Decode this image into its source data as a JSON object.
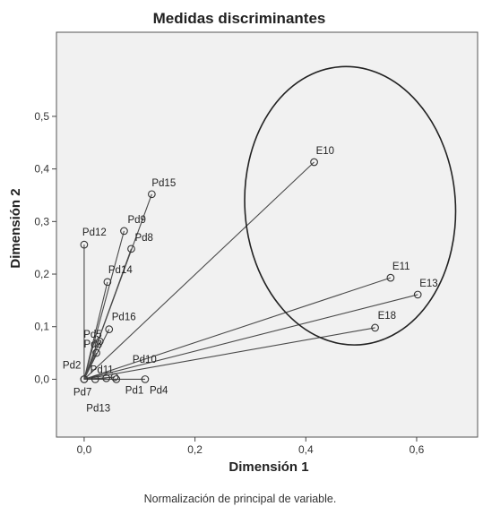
{
  "chart_data": {
    "type": "scatter",
    "title": "Medidas discriminantes",
    "xlabel": "Dimensión 1",
    "ylabel": "Dimensión 2",
    "footnote": "Normalización de principal de variable.",
    "xlim": [
      -0.05,
      0.71
    ],
    "ylim": [
      -0.11,
      0.66
    ],
    "xticks": [
      {
        "v": 0.0,
        "label": "0,0"
      },
      {
        "v": 0.2,
        "label": "0,2"
      },
      {
        "v": 0.4,
        "label": "0,4"
      },
      {
        "v": 0.6,
        "label": "0,6"
      }
    ],
    "yticks": [
      {
        "v": 0.0,
        "label": "0,0"
      },
      {
        "v": 0.1,
        "label": "0,1"
      },
      {
        "v": 0.2,
        "label": "0,2"
      },
      {
        "v": 0.3,
        "label": "0,3"
      },
      {
        "v": 0.4,
        "label": "0,4"
      },
      {
        "v": 0.5,
        "label": "0,5"
      }
    ],
    "grid": false,
    "vectors_from_origin": true,
    "ellipse_annotation": {
      "cx": 0.48,
      "cy": 0.33,
      "rx": 0.19,
      "ry": 0.265
    },
    "points": [
      {
        "label": "E10",
        "x": 0.415,
        "y": 0.413,
        "lx": 2,
        "ly": -9,
        "anchor": "start"
      },
      {
        "label": "E11",
        "x": 0.553,
        "y": 0.193,
        "lx": 2,
        "ly": -9,
        "anchor": "start"
      },
      {
        "label": "E13",
        "x": 0.602,
        "y": 0.161,
        "lx": 2,
        "ly": -9,
        "anchor": "start"
      },
      {
        "label": "E18",
        "x": 0.525,
        "y": 0.098,
        "lx": 3,
        "ly": -10,
        "anchor": "start"
      },
      {
        "label": "Pd15",
        "x": 0.122,
        "y": 0.352,
        "lx": 0,
        "ly": -9,
        "anchor": "start"
      },
      {
        "label": "Pd9",
        "x": 0.072,
        "y": 0.282,
        "lx": 4,
        "ly": -9,
        "anchor": "start"
      },
      {
        "label": "Pd8",
        "x": 0.085,
        "y": 0.248,
        "lx": 4,
        "ly": -9,
        "anchor": "start"
      },
      {
        "label": "Pd12",
        "x": 0.0,
        "y": 0.256,
        "lx": -2,
        "ly": -10,
        "anchor": "start"
      },
      {
        "label": "Pd14",
        "x": 0.042,
        "y": 0.185,
        "lx": 1,
        "ly": -10,
        "anchor": "start"
      },
      {
        "label": "Pd16",
        "x": 0.045,
        "y": 0.095,
        "lx": 3,
        "ly": -10,
        "anchor": "start"
      },
      {
        "label": "Pd5",
        "x": 0.028,
        "y": 0.072,
        "lx": -18,
        "ly": -4,
        "anchor": "start"
      },
      {
        "label": "Pd3",
        "x": 0.022,
        "y": 0.05,
        "lx": -14,
        "ly": -6,
        "anchor": "start"
      },
      {
        "label": "Pd2",
        "x": 0.0,
        "y": 0.0,
        "lx": -24,
        "ly": -12,
        "anchor": "start"
      },
      {
        "label": "Pd11",
        "x": 0.04,
        "y": 0.002,
        "lx": -18,
        "ly": -6,
        "anchor": "start"
      },
      {
        "label": "Pd10",
        "x": 0.055,
        "y": 0.004,
        "lx": 20,
        "ly": -16,
        "anchor": "start"
      },
      {
        "label": "Pd1",
        "x": 0.058,
        "y": 0.0,
        "lx": 10,
        "ly": 16,
        "anchor": "start"
      },
      {
        "label": "Pd4",
        "x": 0.11,
        "y": 0.0,
        "lx": 5,
        "ly": 16,
        "anchor": "start"
      },
      {
        "label": "Pd7",
        "x": 0.0,
        "y": 0.0,
        "lx": -12,
        "ly": 18,
        "anchor": "start"
      },
      {
        "label": "Pd13",
        "x": 0.02,
        "y": 0.0,
        "lx": -10,
        "ly": 36,
        "anchor": "start"
      }
    ]
  }
}
